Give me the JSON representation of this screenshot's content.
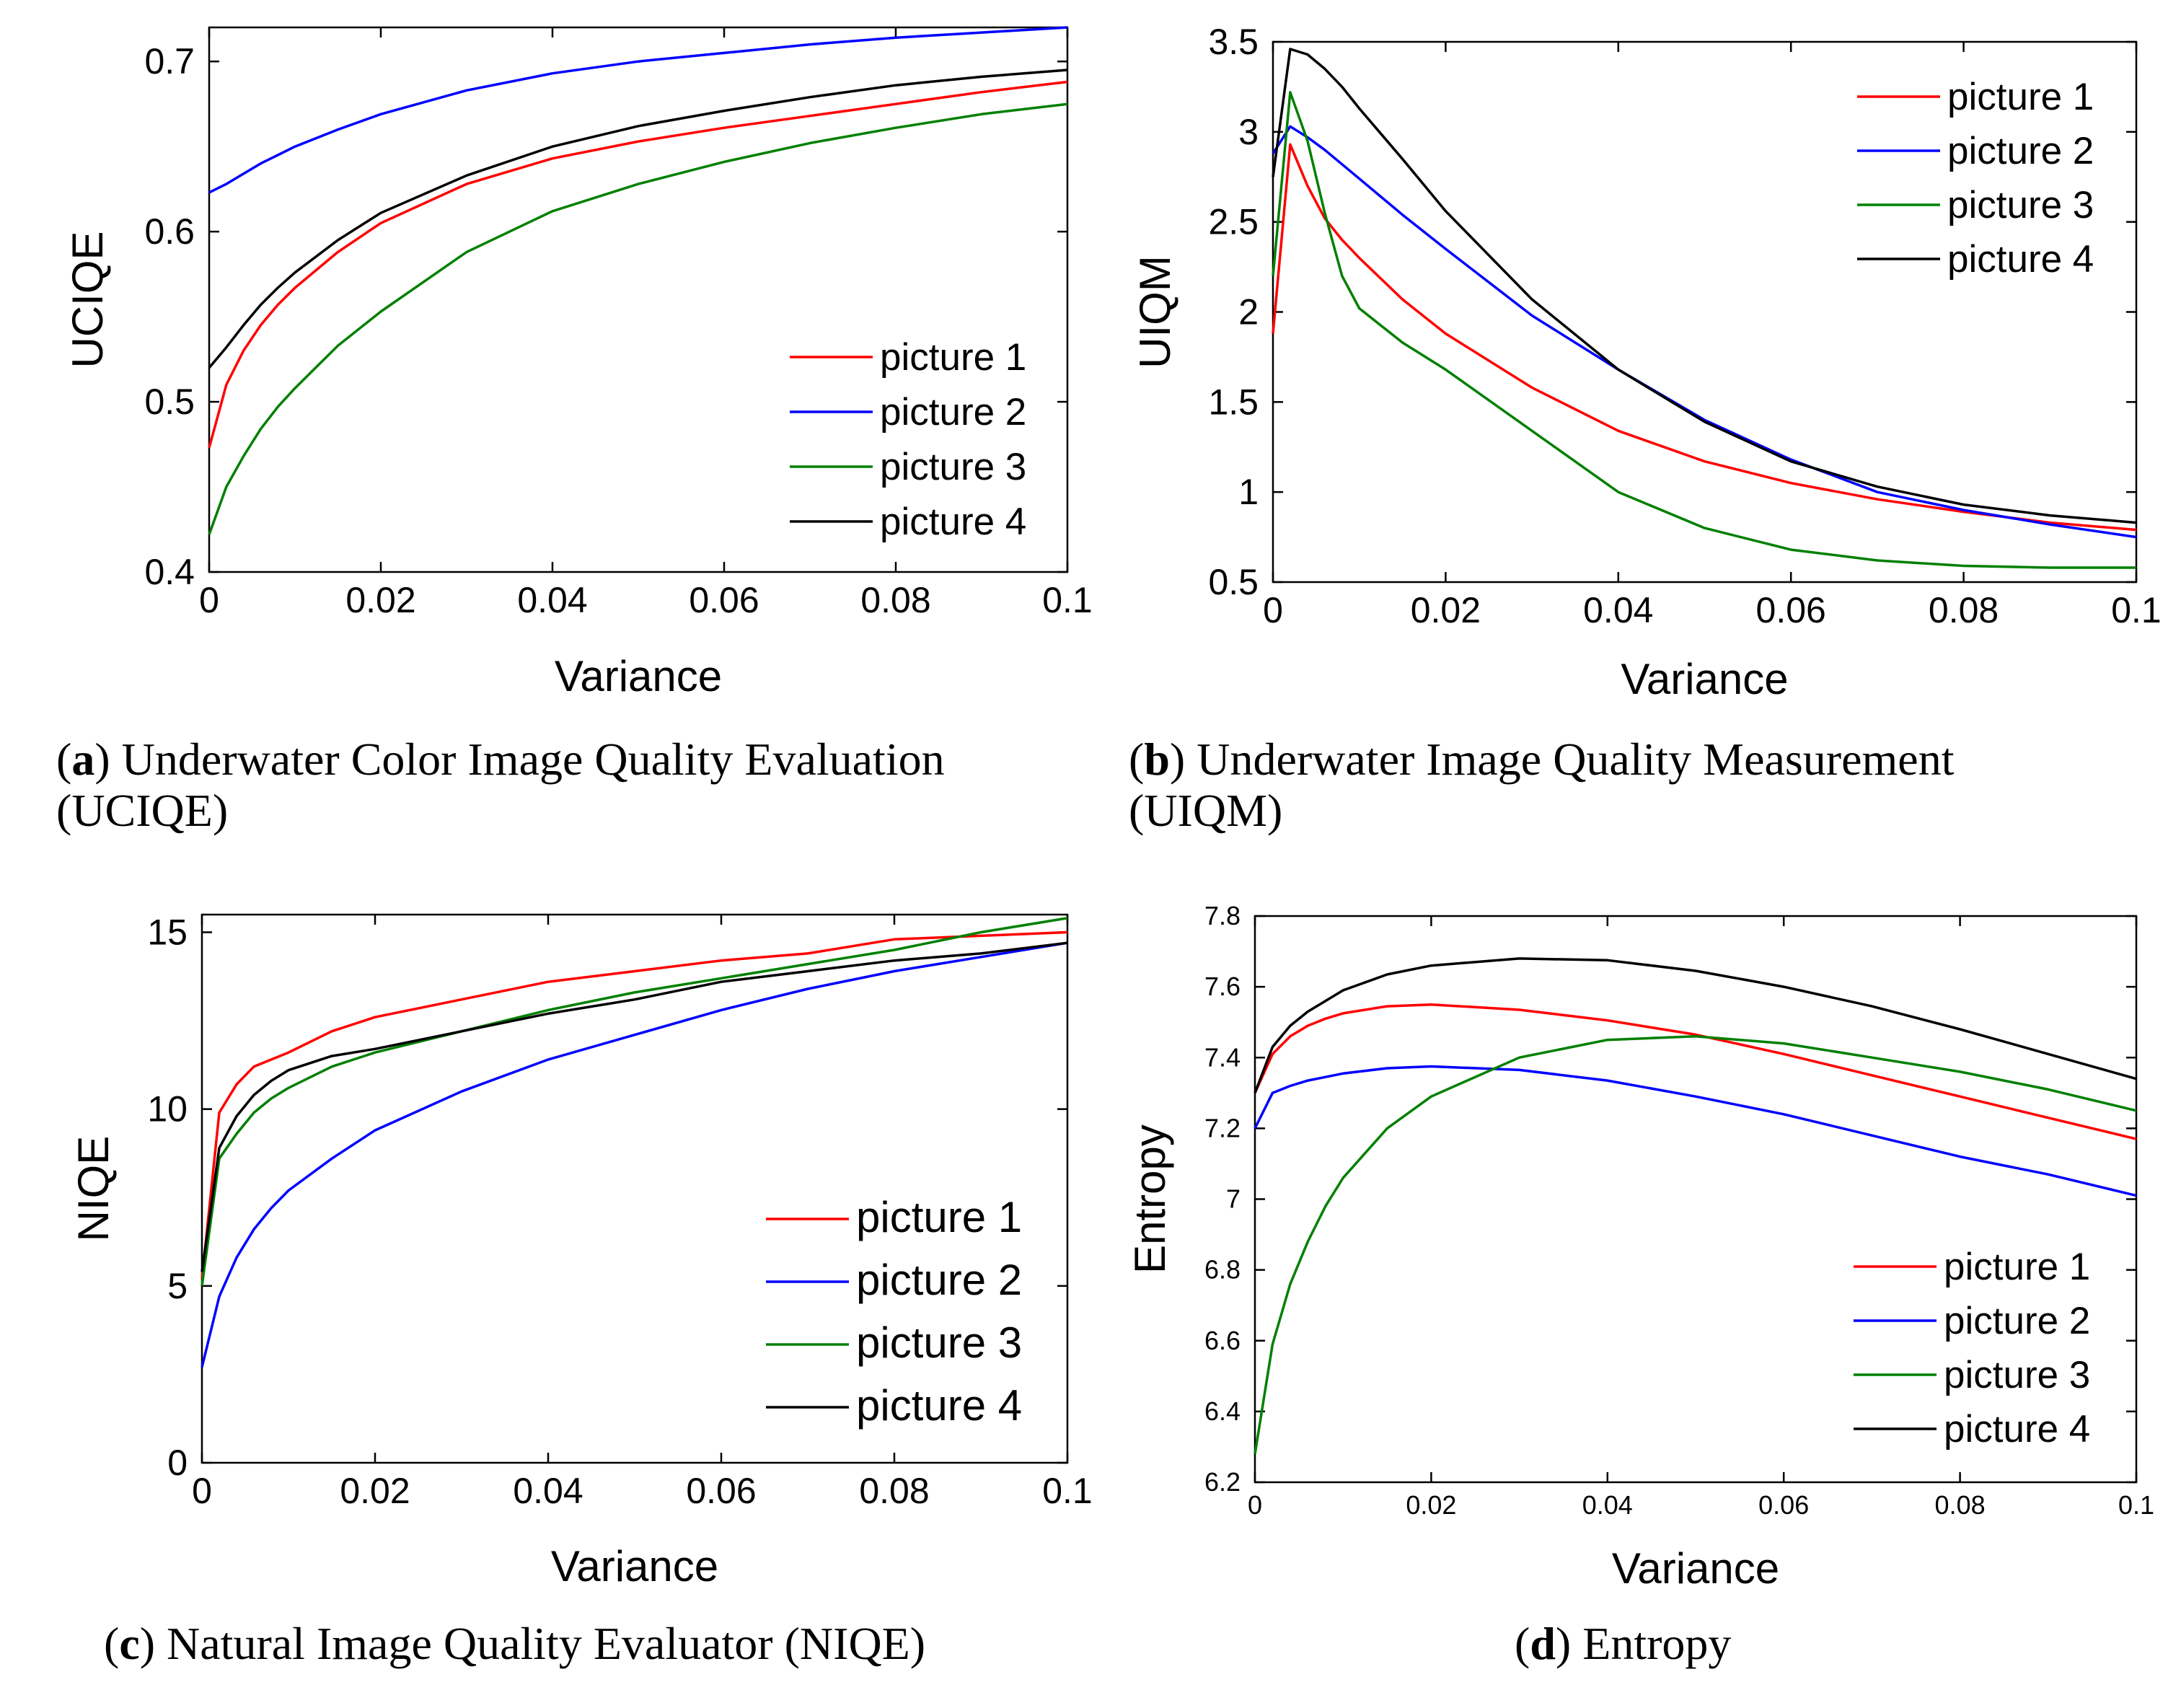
{
  "figure": {
    "captions": [
      {
        "letter": "a",
        "line1": "Underwater Color Image Quality Evaluation",
        "line2": "(UCIQE)"
      },
      {
        "letter": "b",
        "line1": "Underwater   Image   Quality   Measurement",
        "line2": "(UIQM)"
      },
      {
        "letter": "c",
        "line1": "Natural Image Quality Evaluator (NIQE)",
        "line2": ""
      },
      {
        "letter": "d",
        "line1": "Entropy",
        "line2": ""
      }
    ]
  },
  "colors": {
    "picture 1": "#ff0000",
    "picture 2": "#0000ff",
    "picture 3": "#008000",
    "picture 4": "#000000"
  },
  "chart_data": [
    {
      "type": "line",
      "panel": "a",
      "title": "Underwater Color Image Quality Evaluation (UCIQE)",
      "xlabel": "Variance",
      "ylabel": "UCIQE",
      "xlim": [
        0,
        0.1
      ],
      "ylim": [
        0.4,
        0.72
      ],
      "xticks": [
        0,
        0.02,
        0.04,
        0.06,
        0.08,
        0.1
      ],
      "xtick_labels": [
        "0",
        "0.02",
        "0.04",
        "0.06",
        "0.08",
        "0.1"
      ],
      "yticks": [
        0.4,
        0.5,
        0.6,
        0.7
      ],
      "ytick_labels": [
        "0.4",
        "0.5",
        "0.6",
        "0.7"
      ],
      "legend": [
        "picture 1",
        "picture 2",
        "picture 3",
        "picture 4"
      ],
      "legend_position": "bottom-right",
      "x": [
        0,
        0.002,
        0.004,
        0.006,
        0.008,
        0.01,
        0.015,
        0.02,
        0.03,
        0.04,
        0.05,
        0.06,
        0.07,
        0.08,
        0.09,
        0.1
      ],
      "series": [
        {
          "name": "picture 1",
          "values": [
            0.473,
            0.51,
            0.53,
            0.545,
            0.557,
            0.567,
            0.588,
            0.605,
            0.628,
            0.643,
            0.653,
            0.661,
            0.668,
            0.675,
            0.682,
            0.688
          ]
        },
        {
          "name": "picture 2",
          "values": [
            0.623,
            0.628,
            0.634,
            0.64,
            0.645,
            0.65,
            0.66,
            0.669,
            0.683,
            0.693,
            0.7,
            0.705,
            0.71,
            0.714,
            0.717,
            0.72
          ]
        },
        {
          "name": "picture 3",
          "values": [
            0.422,
            0.45,
            0.468,
            0.484,
            0.497,
            0.508,
            0.533,
            0.553,
            0.588,
            0.612,
            0.628,
            0.641,
            0.652,
            0.661,
            0.669,
            0.675
          ]
        },
        {
          "name": "picture 4",
          "values": [
            0.52,
            0.532,
            0.545,
            0.557,
            0.567,
            0.576,
            0.595,
            0.611,
            0.633,
            0.65,
            0.662,
            0.671,
            0.679,
            0.686,
            0.691,
            0.695
          ]
        }
      ]
    },
    {
      "type": "line",
      "panel": "b",
      "title": "Underwater Image Quality Measurement (UIQM)",
      "xlabel": "Variance",
      "ylabel": "UIQM",
      "xlim": [
        0,
        0.1
      ],
      "ylim": [
        0.5,
        3.5
      ],
      "xticks": [
        0,
        0.02,
        0.04,
        0.06,
        0.08,
        0.1
      ],
      "xtick_labels": [
        "0",
        "0.02",
        "0.04",
        "0.06",
        "0.08",
        "0.1"
      ],
      "yticks": [
        0.5,
        1,
        1.5,
        2,
        2.5,
        3,
        3.5
      ],
      "ytick_labels": [
        "0.5",
        "1",
        "1.5",
        "2",
        "2.5",
        "3",
        "3.5"
      ],
      "legend": [
        "picture 1",
        "picture 2",
        "picture 3",
        "picture 4"
      ],
      "legend_position": "top-right",
      "x": [
        0,
        0.002,
        0.004,
        0.006,
        0.008,
        0.01,
        0.015,
        0.02,
        0.03,
        0.04,
        0.05,
        0.06,
        0.07,
        0.08,
        0.09,
        0.1
      ],
      "series": [
        {
          "name": "picture 1",
          "values": [
            1.88,
            2.93,
            2.7,
            2.52,
            2.4,
            2.3,
            2.07,
            1.88,
            1.58,
            1.34,
            1.17,
            1.05,
            0.96,
            0.89,
            0.83,
            0.79
          ]
        },
        {
          "name": "picture 2",
          "values": [
            2.88,
            3.03,
            2.97,
            2.9,
            2.82,
            2.74,
            2.54,
            2.35,
            1.98,
            1.68,
            1.4,
            1.18,
            1.0,
            0.9,
            0.82,
            0.75
          ]
        },
        {
          "name": "picture 3",
          "values": [
            2.2,
            3.22,
            2.95,
            2.55,
            2.2,
            2.02,
            1.83,
            1.68,
            1.34,
            1.0,
            0.8,
            0.68,
            0.62,
            0.59,
            0.58,
            0.58
          ]
        },
        {
          "name": "picture 4",
          "values": [
            2.75,
            3.46,
            3.43,
            3.35,
            3.25,
            3.13,
            2.85,
            2.56,
            2.07,
            1.68,
            1.39,
            1.17,
            1.03,
            0.93,
            0.87,
            0.83
          ]
        }
      ]
    },
    {
      "type": "line",
      "panel": "c",
      "title": "Natural Image Quality Evaluator (NIQE)",
      "xlabel": "Variance",
      "ylabel": "NIQE",
      "xlim": [
        0,
        0.1
      ],
      "ylim": [
        0,
        15.5
      ],
      "xticks": [
        0,
        0.02,
        0.04,
        0.06,
        0.08,
        0.1
      ],
      "xtick_labels": [
        "0",
        "0.02",
        "0.04",
        "0.06",
        "0.08",
        "0.1"
      ],
      "yticks": [
        0,
        5,
        10,
        15
      ],
      "ytick_labels": [
        "0",
        "5",
        "10",
        "15"
      ],
      "legend": [
        "picture 1",
        "picture 2",
        "picture 3",
        "picture 4"
      ],
      "legend_position": "bottom-right",
      "x": [
        0,
        0.002,
        0.004,
        0.006,
        0.008,
        0.01,
        0.015,
        0.02,
        0.03,
        0.04,
        0.05,
        0.06,
        0.07,
        0.08,
        0.09,
        0.1
      ],
      "series": [
        {
          "name": "picture 1",
          "values": [
            5.2,
            9.9,
            10.7,
            11.2,
            11.4,
            11.6,
            12.2,
            12.6,
            13.1,
            13.6,
            13.9,
            14.2,
            14.4,
            14.8,
            14.9,
            15.0
          ]
        },
        {
          "name": "picture 2",
          "values": [
            2.7,
            4.7,
            5.8,
            6.6,
            7.2,
            7.7,
            8.6,
            9.4,
            10.5,
            11.4,
            12.1,
            12.8,
            13.4,
            13.9,
            14.3,
            14.7
          ]
        },
        {
          "name": "picture 3",
          "values": [
            5.0,
            8.6,
            9.3,
            9.9,
            10.3,
            10.6,
            11.2,
            11.6,
            12.2,
            12.8,
            13.3,
            13.7,
            14.1,
            14.5,
            15.0,
            15.4
          ]
        },
        {
          "name": "picture 4",
          "values": [
            5.4,
            8.9,
            9.8,
            10.4,
            10.8,
            11.1,
            11.5,
            11.7,
            12.2,
            12.7,
            13.1,
            13.6,
            13.9,
            14.2,
            14.4,
            14.7
          ]
        }
      ]
    },
    {
      "type": "line",
      "panel": "d",
      "title": "Entropy",
      "xlabel": "Variance",
      "ylabel": "Entropy",
      "xlim": [
        0,
        0.1
      ],
      "ylim": [
        6.2,
        7.8
      ],
      "xticks": [
        0,
        0.02,
        0.04,
        0.06,
        0.08,
        0.1
      ],
      "xtick_labels": [
        "0",
        "0.02",
        "0.04",
        "0.06",
        "0.08",
        "0.1"
      ],
      "yticks": [
        6.2,
        6.4,
        6.6,
        6.8,
        7.0,
        7.2,
        7.4,
        7.6,
        7.8
      ],
      "ytick_labels": [
        "6.2",
        "6.4",
        "6.6",
        "6.8",
        "7",
        "7.2",
        "7.4",
        "7.6",
        "7.8"
      ],
      "legend": [
        "picture 1",
        "picture 2",
        "picture 3",
        "picture 4"
      ],
      "legend_position": "bottom-right",
      "x": [
        0,
        0.002,
        0.004,
        0.006,
        0.008,
        0.01,
        0.015,
        0.02,
        0.03,
        0.04,
        0.05,
        0.06,
        0.07,
        0.08,
        0.09,
        0.1
      ],
      "series": [
        {
          "name": "picture 1",
          "values": [
            7.3,
            7.41,
            7.46,
            7.49,
            7.51,
            7.525,
            7.545,
            7.55,
            7.535,
            7.505,
            7.465,
            7.41,
            7.35,
            7.29,
            7.23,
            7.17
          ]
        },
        {
          "name": "picture 2",
          "values": [
            7.2,
            7.3,
            7.32,
            7.335,
            7.345,
            7.355,
            7.37,
            7.375,
            7.365,
            7.335,
            7.29,
            7.24,
            7.18,
            7.12,
            7.07,
            7.01
          ]
        },
        {
          "name": "picture 3",
          "values": [
            6.28,
            6.59,
            6.76,
            6.88,
            6.98,
            7.06,
            7.2,
            7.29,
            7.4,
            7.45,
            7.46,
            7.44,
            7.4,
            7.36,
            7.31,
            7.25
          ]
        },
        {
          "name": "picture 4",
          "values": [
            7.3,
            7.43,
            7.49,
            7.53,
            7.56,
            7.59,
            7.635,
            7.66,
            7.68,
            7.675,
            7.645,
            7.6,
            7.545,
            7.48,
            7.41,
            7.34
          ]
        }
      ]
    }
  ]
}
